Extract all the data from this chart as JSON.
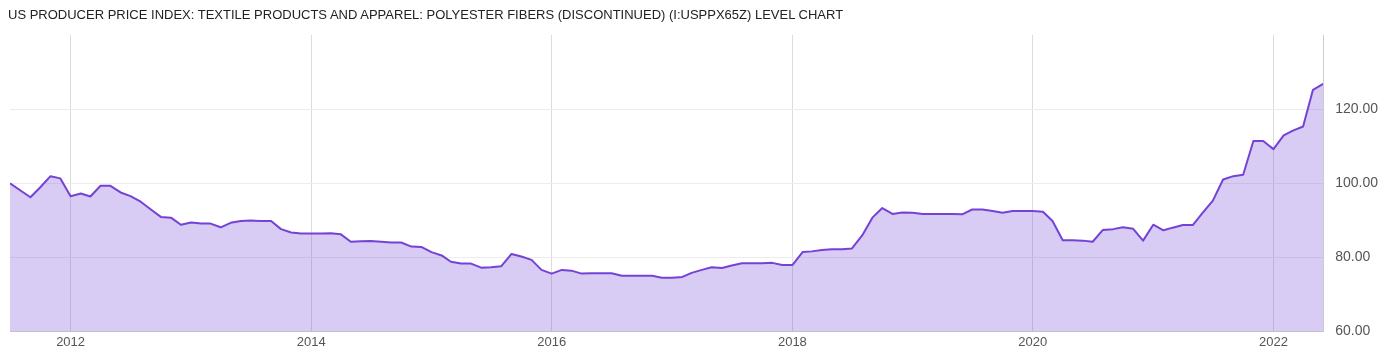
{
  "chart_data": {
    "type": "area",
    "title": "US PRODUCER PRICE INDEX: TEXTILE PRODUCTS AND APPAREL: POLYESTER FIBERS (DISCONTINUED) (I:USPPX65Z) LEVEL CHART",
    "x": [
      "2011-07",
      "2011-09",
      "2011-10",
      "2011-11",
      "2011-12",
      "2012-01",
      "2012-02",
      "2012-03",
      "2012-04",
      "2012-05",
      "2012-06",
      "2012-07",
      "2012-08",
      "2012-09",
      "2012-10",
      "2012-11",
      "2012-12",
      "2013-01",
      "2013-02",
      "2013-03",
      "2013-04",
      "2013-05",
      "2013-06",
      "2013-07",
      "2013-08",
      "2013-09",
      "2013-10",
      "2013-11",
      "2013-12",
      "2014-01",
      "2014-02",
      "2014-03",
      "2014-04",
      "2014-05",
      "2014-06",
      "2014-07",
      "2014-08",
      "2014-09",
      "2014-10",
      "2014-11",
      "2014-12",
      "2015-01",
      "2015-02",
      "2015-03",
      "2015-04",
      "2015-05",
      "2015-06",
      "2015-07",
      "2015-08",
      "2015-09",
      "2015-10",
      "2015-11",
      "2015-12",
      "2016-01",
      "2016-02",
      "2016-03",
      "2016-04",
      "2016-05",
      "2016-06",
      "2016-07",
      "2016-08",
      "2016-09",
      "2016-10",
      "2016-11",
      "2016-12",
      "2017-01",
      "2017-02",
      "2017-03",
      "2017-04",
      "2017-05",
      "2017-06",
      "2017-07",
      "2017-08",
      "2017-09",
      "2017-10",
      "2017-11",
      "2017-12",
      "2018-01",
      "2018-02",
      "2018-03",
      "2018-04",
      "2018-05",
      "2018-06",
      "2018-07",
      "2018-08",
      "2018-09",
      "2018-10",
      "2018-11",
      "2018-12",
      "2019-01",
      "2019-02",
      "2019-03",
      "2019-04",
      "2019-05",
      "2019-06",
      "2019-07",
      "2019-08",
      "2019-09",
      "2019-10",
      "2019-11",
      "2019-12",
      "2020-01",
      "2020-02",
      "2020-03",
      "2020-04",
      "2020-05",
      "2020-06",
      "2020-07",
      "2020-08",
      "2020-09",
      "2020-10",
      "2020-11",
      "2020-12",
      "2021-01",
      "2021-02",
      "2021-03",
      "2021-04",
      "2021-05",
      "2021-06",
      "2021-07",
      "2021-08",
      "2021-09",
      "2021-10",
      "2021-11",
      "2021-12",
      "2022-01",
      "2022-02",
      "2022-03",
      "2022-04",
      "2022-05",
      "2022-06"
    ],
    "series": [
      {
        "color": "#7443d6",
        "values": [
          100.0,
          96.2,
          98.9,
          101.9,
          101.3,
          96.5,
          97.2,
          96.4,
          99.3,
          99.3,
          97.5,
          96.5,
          95.0,
          92.9,
          90.9,
          90.7,
          88.8,
          89.4,
          89.1,
          89.1,
          88.1,
          89.3,
          89.8,
          89.9,
          89.8,
          89.8,
          87.6,
          86.7,
          86.4,
          86.4,
          86.4,
          86.5,
          86.2,
          84.2,
          84.3,
          84.4,
          84.2,
          84.0,
          84.0,
          82.9,
          82.8,
          81.4,
          80.5,
          78.8,
          78.3,
          78.3,
          77.2,
          77.3,
          77.6,
          80.9,
          80.2,
          79.3,
          76.6,
          75.6,
          76.6,
          76.4,
          75.6,
          75.7,
          75.7,
          75.7,
          75.0,
          75.0,
          75.0,
          75.0,
          74.5,
          74.5,
          74.7,
          75.8,
          76.6,
          77.3,
          77.1,
          77.8,
          78.4,
          78.4,
          78.4,
          78.5,
          77.9,
          77.9,
          81.4,
          81.6,
          82.0,
          82.2,
          82.2,
          82.4,
          85.9,
          90.7,
          93.3,
          91.7,
          92.1,
          92.0,
          91.7,
          91.7,
          91.7,
          91.7,
          91.6,
          92.9,
          92.9,
          92.5,
          92.0,
          92.5,
          92.5,
          92.5,
          92.3,
          89.8,
          84.6,
          84.6,
          84.5,
          84.2,
          87.4,
          87.6,
          88.1,
          87.7,
          84.5,
          88.8,
          87.3,
          88.0,
          88.7,
          88.7,
          92.1,
          95.3,
          101.0,
          101.9,
          102.3,
          111.4,
          111.4,
          109.2,
          112.9,
          114.2,
          115.3,
          125.2,
          126.8
        ]
      }
    ],
    "xlim": [
      "2011-07",
      "2022-06"
    ],
    "xticks": [
      {
        "value": "2012",
        "label": "2012"
      },
      {
        "value": "2014",
        "label": "2014"
      },
      {
        "value": "2016",
        "label": "2016"
      },
      {
        "value": "2018",
        "label": "2018"
      },
      {
        "value": "2020",
        "label": "2020"
      },
      {
        "value": "2022",
        "label": "2022"
      }
    ],
    "ylim": [
      60,
      140
    ],
    "yticks": [
      {
        "value": 60,
        "label": "60.00"
      },
      {
        "value": 80,
        "label": "80.00"
      },
      {
        "value": 100,
        "label": "100.00"
      },
      {
        "value": 120,
        "label": "120.00"
      }
    ],
    "grid": true,
    "legend": false,
    "marker": "none",
    "line_style": "solid"
  }
}
